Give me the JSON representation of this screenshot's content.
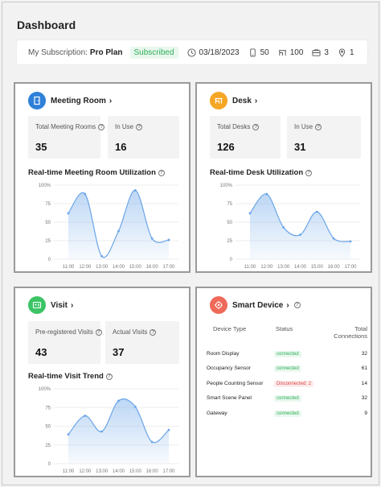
{
  "header": {
    "title": "Dashboard"
  },
  "subscription": {
    "label": "My Subscription:",
    "plan": "Pro Plan",
    "status": "Subscribed",
    "date": "03/18/2023",
    "meta": [
      {
        "icon": "calendar-icon",
        "value": "03/18/2023"
      },
      {
        "icon": "phone-icon",
        "value": "50"
      },
      {
        "icon": "desk-icon",
        "value": "100"
      },
      {
        "icon": "briefcase-icon",
        "value": "3"
      },
      {
        "icon": "location-pin-icon",
        "value": "1"
      }
    ]
  },
  "colors": {
    "meeting": "#2f80d8",
    "desk": "#f5a623",
    "visit": "#3cc466",
    "device": "#f06a5a",
    "series": "#6aa5e8"
  },
  "meeting": {
    "title": "Meeting Room",
    "total_label": "Total Meeting Rooms",
    "total_value": "35",
    "inuse_label": "In Use",
    "inuse_value": "16",
    "chart_title": "Real-time Meeting Room Utilization"
  },
  "desk": {
    "title": "Desk",
    "total_label": "Total Desks",
    "total_value": "126",
    "inuse_label": "In Use",
    "inuse_value": "31",
    "chart_title": "Real-time Desk Utilization"
  },
  "visit": {
    "title": "Visit",
    "pre_label": "Pre-registered Visits",
    "pre_value": "43",
    "actual_label": "Actual Visits",
    "actual_value": "37",
    "chart_title": "Real-time Visit Trend"
  },
  "smart": {
    "title": "Smart Device",
    "headers": [
      "Device Type",
      "Status",
      "Total Connections"
    ],
    "rows": [
      {
        "type": "Room Display",
        "status": "connected",
        "count": "32"
      },
      {
        "type": "Occupancy Sensor",
        "status": "connected",
        "count": "61"
      },
      {
        "type": "People Counting Sensor",
        "status": "Disconnected: 2",
        "count": "14"
      },
      {
        "type": "Smart Scene Panel",
        "status": "connected",
        "count": "32"
      },
      {
        "type": "Gateway",
        "status": "connected",
        "count": "9"
      }
    ]
  },
  "chart_data": [
    {
      "type": "area",
      "title": "Real-time Meeting Room Utilization",
      "x": [
        "11:00",
        "12:00",
        "13:00",
        "14:00",
        "15:00",
        "16:00",
        "17:00"
      ],
      "y_ticks": [
        "0",
        "25",
        "50",
        "75",
        "100%"
      ],
      "ylim": [
        0,
        100
      ],
      "values": [
        62,
        88,
        4,
        38,
        93,
        28,
        26
      ]
    },
    {
      "type": "area",
      "title": "Real-time Desk Utilization",
      "x": [
        "11:00",
        "12:00",
        "13:00",
        "14:00",
        "15:00",
        "16:00",
        "17:00"
      ],
      "y_ticks": [
        "0",
        "25",
        "50",
        "75",
        "100%"
      ],
      "ylim": [
        0,
        100
      ],
      "values": [
        62,
        88,
        43,
        33,
        64,
        28,
        24
      ]
    },
    {
      "type": "area",
      "title": "Real-time Visit Trend",
      "x": [
        "11:00",
        "12:00",
        "13:00",
        "14:00",
        "15:00",
        "16:00",
        "17:00"
      ],
      "y_ticks": [
        "0",
        "25",
        "50",
        "75",
        "100%"
      ],
      "ylim": [
        0,
        100
      ],
      "values": [
        39,
        64,
        43,
        84,
        76,
        29,
        45
      ]
    }
  ]
}
